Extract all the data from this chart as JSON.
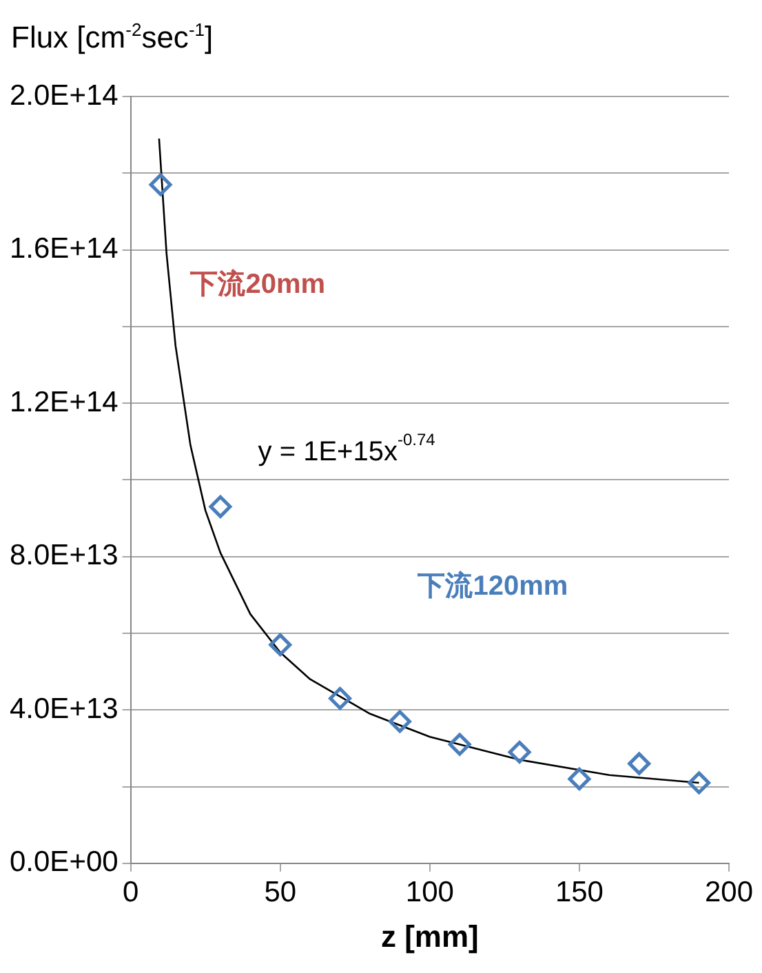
{
  "chart_data": {
    "type": "scatter",
    "xlabel": "z [mm]",
    "ylabel": "Flux [cm$^{-2}$sec$^{-1}$]",
    "x": [
      10,
      30,
      50,
      70,
      90,
      110,
      130,
      150,
      170,
      190
    ],
    "series": [
      {
        "color": "#4a7ebb",
        "values": [
          177000000000000.0,
          93000000000000.0,
          57000000000000.0,
          43000000000000.0,
          37000000000000.0,
          31000000000000.0,
          29000000000000.0,
          22000000000000.0,
          26000000000000.0,
          21000000000000.0
        ]
      },
      {
        "type": "line",
        "color": "#000000",
        "marker": "none",
        "x": [
          9.5,
          12,
          15,
          20,
          25,
          30,
          40,
          50,
          60,
          80,
          100,
          130,
          160,
          190
        ],
        "values": [
          189000000000000.0,
          159000000000000.0,
          135000000000000.0,
          109000000000000.0,
          92000000000000.0,
          81000000000000.0,
          65000000000000.0,
          55000000000000.0,
          48000000000000.0,
          39000000000000.0,
          33000000000000.0,
          27000000000000.0,
          23000000000000.0,
          21000000000000.0
        ]
      }
    ],
    "annotations": [
      "下流20mm",
      "y = 1E+15x$^{-0.74}$",
      "下流120mm"
    ],
    "xlim": [
      0,
      200
    ],
    "xticks": [
      0,
      50,
      100,
      150,
      200
    ],
    "ylim": [
      0,
      200000000000000.0
    ],
    "yticks": [
      {
        "value": 0,
        "label": "0.0E+00"
      },
      {
        "value": 20000000000000.0,
        "label": null
      },
      {
        "value": 40000000000000.0,
        "label": "4.0E+13"
      },
      {
        "value": 60000000000000.0,
        "label": null
      },
      {
        "value": 80000000000000.0,
        "label": "8.0E+13"
      },
      {
        "value": 100000000000000.0,
        "label": null
      },
      {
        "value": 120000000000000.0,
        "label": "1.2E+14"
      },
      {
        "value": 140000000000000.0,
        "label": null
      },
      {
        "value": 160000000000000.0,
        "label": "1.6E+14"
      },
      {
        "value": 180000000000000.0,
        "label": null
      },
      {
        "value": 200000000000000.0,
        "label": "2.0E+14"
      }
    ],
    "grid": "y",
    "legend": false,
    "marker": "diamond"
  }
}
